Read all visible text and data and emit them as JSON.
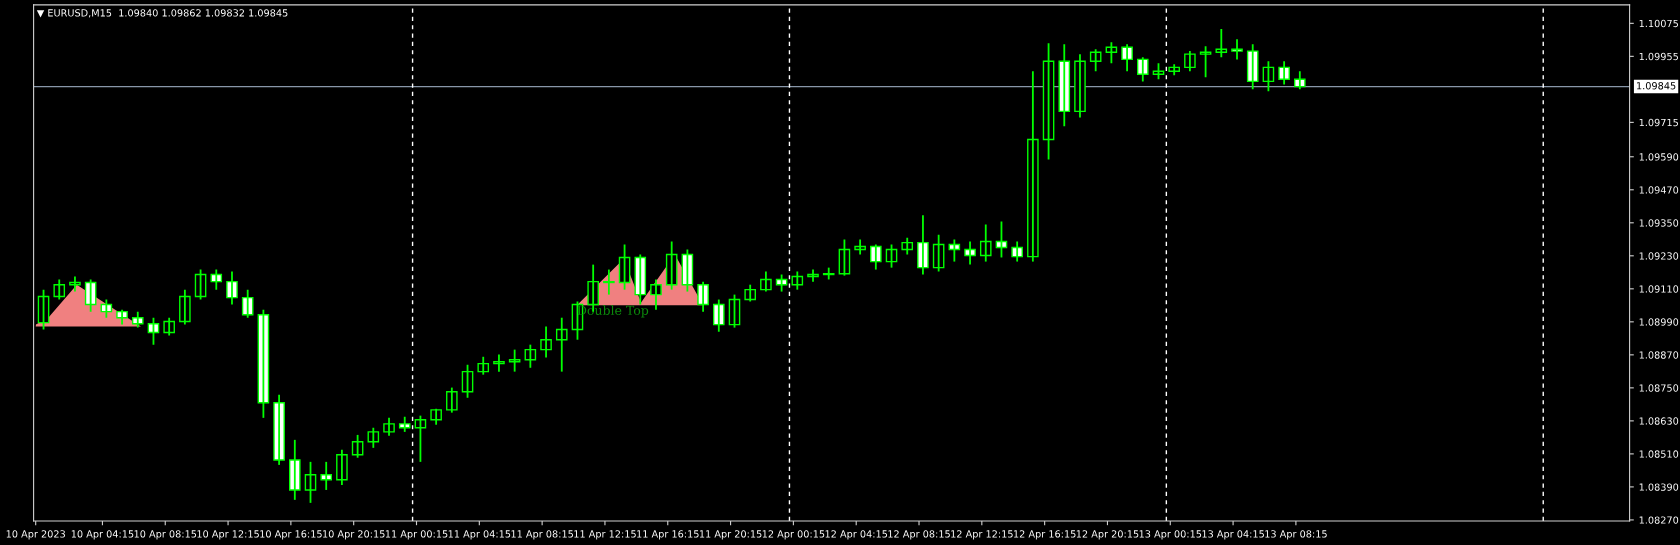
{
  "chart_data": {
    "type": "candlestick",
    "title": "▼ EURUSD,M15  1.09840 1.09862 1.09832 1.09845",
    "xlim": [
      "2023-04-09T23:52",
      "2023-04-14T05:30"
    ],
    "ylim": [
      1.08266,
      1.10142
    ],
    "xticks": [
      {
        "value": "2023-04-10T00:00",
        "label": "10 Apr 2023"
      },
      {
        "value": "2023-04-10T04:15",
        "label": "10 Apr 04:15"
      },
      {
        "value": "2023-04-10T08:15",
        "label": "10 Apr 08:15"
      },
      {
        "value": "2023-04-10T12:15",
        "label": "10 Apr 12:15"
      },
      {
        "value": "2023-04-10T16:15",
        "label": "10 Apr 16:15"
      },
      {
        "value": "2023-04-10T20:15",
        "label": "10 Apr 20:15"
      },
      {
        "value": "2023-04-11T00:15",
        "label": "11 Apr 00:15"
      },
      {
        "value": "2023-04-11T04:15",
        "label": "11 Apr 04:15"
      },
      {
        "value": "2023-04-11T08:15",
        "label": "11 Apr 08:15"
      },
      {
        "value": "2023-04-11T12:15",
        "label": "11 Apr 12:15"
      },
      {
        "value": "2023-04-11T16:15",
        "label": "11 Apr 16:15"
      },
      {
        "value": "2023-04-11T20:15",
        "label": "11 Apr 20:15"
      },
      {
        "value": "2023-04-12T00:15",
        "label": "12 Apr 00:15"
      },
      {
        "value": "2023-04-12T04:15",
        "label": "12 Apr 04:15"
      },
      {
        "value": "2023-04-12T08:15",
        "label": "12 Apr 08:15"
      },
      {
        "value": "2023-04-12T12:15",
        "label": "12 Apr 12:15"
      },
      {
        "value": "2023-04-12T16:15",
        "label": "12 Apr 16:15"
      },
      {
        "value": "2023-04-12T20:15",
        "label": "12 Apr 20:15"
      },
      {
        "value": "2023-04-13T00:15",
        "label": "13 Apr 00:15"
      },
      {
        "value": "2023-04-13T04:15",
        "label": "13 Apr 04:15"
      },
      {
        "value": "2023-04-13T08:15",
        "label": "13 Apr 08:15"
      }
    ],
    "yticks": [
      {
        "value": 1.0827,
        "label": "1.08270"
      },
      {
        "value": 1.0839,
        "label": "1.08390"
      },
      {
        "value": 1.0851,
        "label": "1.08510"
      },
      {
        "value": 1.0863,
        "label": "1.08630"
      },
      {
        "value": 1.0875,
        "label": "1.08750"
      },
      {
        "value": 1.0887,
        "label": "1.08870"
      },
      {
        "value": 1.0899,
        "label": "1.08990"
      },
      {
        "value": 1.0911,
        "label": "1.09110"
      },
      {
        "value": 1.0923,
        "label": "1.09230"
      },
      {
        "value": 1.0935,
        "label": "1.09350"
      },
      {
        "value": 1.0947,
        "label": "1.09470"
      },
      {
        "value": 1.0959,
        "label": "1.09590"
      },
      {
        "value": 1.09715,
        "label": "1.09715"
      },
      {
        "value": 1.09955,
        "label": "1.09955"
      },
      {
        "value": 1.10075,
        "label": "1.10075"
      }
    ],
    "ref_lines": [
      {
        "axis": "y",
        "value": 1.09845,
        "label": "1.09845",
        "color": "#8896a8",
        "line_style": "solid"
      },
      {
        "axis": "x",
        "value": "2023-04-11T00:00",
        "color": "#ffffff",
        "line_style": "dashed"
      },
      {
        "axis": "x",
        "value": "2023-04-12T00:00",
        "color": "#ffffff",
        "line_style": "dashed"
      },
      {
        "axis": "x",
        "value": "2023-04-13T00:00",
        "color": "#ffffff",
        "line_style": "dashed"
      },
      {
        "axis": "x",
        "value": "2023-04-14T00:00",
        "color": "#ffffff",
        "line_style": "dashed"
      }
    ],
    "series": [
      {
        "type": "area",
        "color": "#f08080",
        "x": [
          "2023-04-10T00:00",
          "2023-04-10T00:01",
          "2023-04-10T00:48",
          "2023-04-10T02:37",
          "2023-04-10T06:42"
        ],
        "values": [
          1.08973,
          1.0898,
          1.09005,
          1.09125,
          1.08973
        ]
      },
      {
        "type": "area",
        "name": "Double Top",
        "color": "#f08080",
        "x": [
          "2023-04-11T10:28",
          "2023-04-11T13:27",
          "2023-04-11T14:33",
          "2023-04-11T16:42",
          "2023-04-11T18:30"
        ],
        "values": [
          1.0905,
          1.09219,
          1.0906,
          1.09235,
          1.0905
        ]
      },
      {
        "color": "#00ff00",
        "x": [
          "2023-04-10T00:30",
          "2023-04-10T01:30",
          "2023-04-10T02:30",
          "2023-04-10T03:30",
          "2023-04-10T04:30",
          "2023-04-10T05:30",
          "2023-04-10T06:30",
          "2023-04-10T07:30",
          "2023-04-10T08:30",
          "2023-04-10T09:30",
          "2023-04-10T10:30",
          "2023-04-10T11:30",
          "2023-04-10T12:30",
          "2023-04-10T13:30",
          "2023-04-10T14:30",
          "2023-04-10T15:30",
          "2023-04-10T16:30",
          "2023-04-10T17:30",
          "2023-04-10T18:30",
          "2023-04-10T19:30",
          "2023-04-10T20:30",
          "2023-04-10T21:30",
          "2023-04-10T22:30",
          "2023-04-10T23:30",
          "2023-04-11T00:30",
          "2023-04-11T01:30",
          "2023-04-11T02:30",
          "2023-04-11T03:30",
          "2023-04-11T04:30",
          "2023-04-11T05:30",
          "2023-04-11T06:30",
          "2023-04-11T07:30",
          "2023-04-11T08:30",
          "2023-04-11T09:30",
          "2023-04-11T10:30",
          "2023-04-11T11:30",
          "2023-04-11T12:30",
          "2023-04-11T13:30",
          "2023-04-11T14:30",
          "2023-04-11T15:30",
          "2023-04-11T16:30",
          "2023-04-11T17:30",
          "2023-04-11T18:30",
          "2023-04-11T19:30",
          "2023-04-11T20:30",
          "2023-04-11T21:30",
          "2023-04-11T22:30",
          "2023-04-11T23:30",
          "2023-04-12T00:30",
          "2023-04-12T01:30",
          "2023-04-12T02:30",
          "2023-04-12T03:30",
          "2023-04-12T04:30",
          "2023-04-12T05:30",
          "2023-04-12T06:30",
          "2023-04-12T07:30",
          "2023-04-12T08:30",
          "2023-04-12T09:30",
          "2023-04-12T10:30",
          "2023-04-12T11:30",
          "2023-04-12T12:30",
          "2023-04-12T13:30",
          "2023-04-12T14:30",
          "2023-04-12T15:30",
          "2023-04-12T16:30",
          "2023-04-12T17:30",
          "2023-04-12T18:30",
          "2023-04-12T19:30",
          "2023-04-12T20:30",
          "2023-04-12T21:30",
          "2023-04-12T22:30",
          "2023-04-12T23:30",
          "2023-04-13T00:30",
          "2023-04-13T01:30",
          "2023-04-13T02:30",
          "2023-04-13T03:30",
          "2023-04-13T04:30",
          "2023-04-13T05:30",
          "2023-04-13T06:30",
          "2023-04-13T07:30",
          "2023-04-13T08:30"
        ],
        "ohlc": [
          [
            1.08987,
            1.09107,
            1.08962,
            1.09082
          ],
          [
            1.09082,
            1.09144,
            1.09071,
            1.09125
          ],
          [
            1.09125,
            1.09155,
            1.091,
            1.09133
          ],
          [
            1.09133,
            1.09144,
            1.09027,
            1.09053
          ],
          [
            1.09053,
            1.09071,
            1.09005,
            1.09027
          ],
          [
            1.09027,
            1.09034,
            1.0898,
            1.09005
          ],
          [
            1.09005,
            1.09027,
            1.08969,
            1.08983
          ],
          [
            1.08983,
            1.09005,
            1.08907,
            1.08951
          ],
          [
            1.08951,
            1.09005,
            1.0894,
            1.08991
          ],
          [
            1.08991,
            1.09107,
            1.0898,
            1.09082
          ],
          [
            1.09082,
            1.0918,
            1.09071,
            1.09162
          ],
          [
            1.09162,
            1.0918,
            1.09107,
            1.09136
          ],
          [
            1.09136,
            1.09173,
            1.09053,
            1.09078
          ],
          [
            1.09078,
            1.09107,
            1.09005,
            1.09016
          ],
          [
            1.09016,
            1.09034,
            1.08641,
            1.08696
          ],
          [
            1.08696,
            1.08725,
            1.0847,
            1.08488
          ],
          [
            1.08488,
            1.08561,
            1.08343,
            1.08379
          ],
          [
            1.08379,
            1.08481,
            1.08332,
            1.08434
          ],
          [
            1.08434,
            1.08481,
            1.08379,
            1.08416
          ],
          [
            1.08416,
            1.08525,
            1.08397,
            1.08507
          ],
          [
            1.08507,
            1.08579,
            1.08496,
            1.08554
          ],
          [
            1.08554,
            1.08605,
            1.08532,
            1.0859
          ],
          [
            1.0859,
            1.08641,
            1.08576,
            1.08619
          ],
          [
            1.08619,
            1.08645,
            1.0859,
            1.08605
          ],
          [
            1.08605,
            1.08649,
            1.08481,
            1.08634
          ],
          [
            1.08634,
            1.08674,
            1.08616,
            1.0867
          ],
          [
            1.0867,
            1.08751,
            1.0866,
            1.08736
          ],
          [
            1.08736,
            1.08834,
            1.08714,
            1.08809
          ],
          [
            1.08809,
            1.08863,
            1.08798,
            1.08838
          ],
          [
            1.08838,
            1.08871,
            1.08809,
            1.08845
          ],
          [
            1.08845,
            1.08889,
            1.08809,
            1.08852
          ],
          [
            1.08852,
            1.08907,
            1.08823,
            1.08889
          ],
          [
            1.08889,
            1.08973,
            1.0886,
            1.08925
          ],
          [
            1.08925,
            1.09005,
            1.08809,
            1.08962
          ],
          [
            1.08962,
            1.09064,
            1.08925,
            1.09053
          ],
          [
            1.09053,
            1.09198,
            1.09027,
            1.09136
          ],
          [
            1.09136,
            1.0918,
            1.09089,
            1.09133
          ],
          [
            1.09133,
            1.09271,
            1.09107,
            1.09224
          ],
          [
            1.09224,
            1.09235,
            1.09053,
            1.09089
          ],
          [
            1.09089,
            1.09144,
            1.09034,
            1.09125
          ],
          [
            1.09125,
            1.09282,
            1.09107,
            1.09235
          ],
          [
            1.09235,
            1.09253,
            1.091,
            1.09125
          ],
          [
            1.09125,
            1.09136,
            1.09027,
            1.09053
          ],
          [
            1.09053,
            1.09071,
            1.08954,
            1.0898
          ],
          [
            1.0898,
            1.09089,
            1.08969,
            1.09071
          ],
          [
            1.09071,
            1.09125,
            1.09064,
            1.09107
          ],
          [
            1.09107,
            1.09173,
            1.091,
            1.09144
          ],
          [
            1.09144,
            1.09162,
            1.091,
            1.09125
          ],
          [
            1.09125,
            1.09173,
            1.09107,
            1.09155
          ],
          [
            1.09155,
            1.0918,
            1.09136,
            1.09162
          ],
          [
            1.09162,
            1.09187,
            1.09144,
            1.09165
          ],
          [
            1.09165,
            1.09289,
            1.09158,
            1.09253
          ],
          [
            1.09253,
            1.09289,
            1.09235,
            1.09264
          ],
          [
            1.09264,
            1.09271,
            1.0918,
            1.09209
          ],
          [
            1.09209,
            1.09271,
            1.09187,
            1.09253
          ],
          [
            1.09253,
            1.09296,
            1.09235,
            1.09278
          ],
          [
            1.09278,
            1.09377,
            1.09162,
            1.09187
          ],
          [
            1.09187,
            1.09307,
            1.09173,
            1.09271
          ],
          [
            1.09271,
            1.09289,
            1.09209,
            1.09253
          ],
          [
            1.09253,
            1.09282,
            1.09198,
            1.09231
          ],
          [
            1.09231,
            1.09344,
            1.09209,
            1.09282
          ],
          [
            1.09282,
            1.09355,
            1.09224,
            1.0926
          ],
          [
            1.0926,
            1.09282,
            1.09209,
            1.09227
          ],
          [
            1.09227,
            1.09901,
            1.09209,
            1.09653
          ],
          [
            1.09653,
            1.10003,
            1.0958,
            1.09937
          ],
          [
            1.09937,
            1.09999,
            1.09701,
            1.09755
          ],
          [
            1.09755,
            1.09963,
            1.09733,
            1.09937
          ],
          [
            1.09937,
            1.09981,
            1.09901,
            1.0997
          ],
          [
            1.0997,
            1.10006,
            1.0993,
            1.09988
          ],
          [
            1.09988,
            1.09999,
            1.09901,
            1.09944
          ],
          [
            1.09944,
            1.09952,
            1.09864,
            1.0989
          ],
          [
            1.0989,
            1.0993,
            1.09872,
            1.09901
          ],
          [
            1.09901,
            1.09926,
            1.09886,
            1.09915
          ],
          [
            1.09915,
            1.09974,
            1.09901,
            1.09963
          ],
          [
            1.09963,
            1.09992,
            1.09879,
            1.0997
          ],
          [
            1.0997,
            1.10054,
            1.09952,
            1.09981
          ],
          [
            1.09981,
            1.10017,
            1.09944,
            1.09974
          ],
          [
            1.09974,
            1.09999,
            1.09835,
            1.09864
          ],
          [
            1.09864,
            1.09937,
            1.09828,
            1.09915
          ],
          [
            1.09915,
            1.09937,
            1.09853,
            1.09872
          ],
          [
            1.09872,
            1.09901,
            1.09835,
            1.09845
          ]
        ]
      }
    ]
  }
}
